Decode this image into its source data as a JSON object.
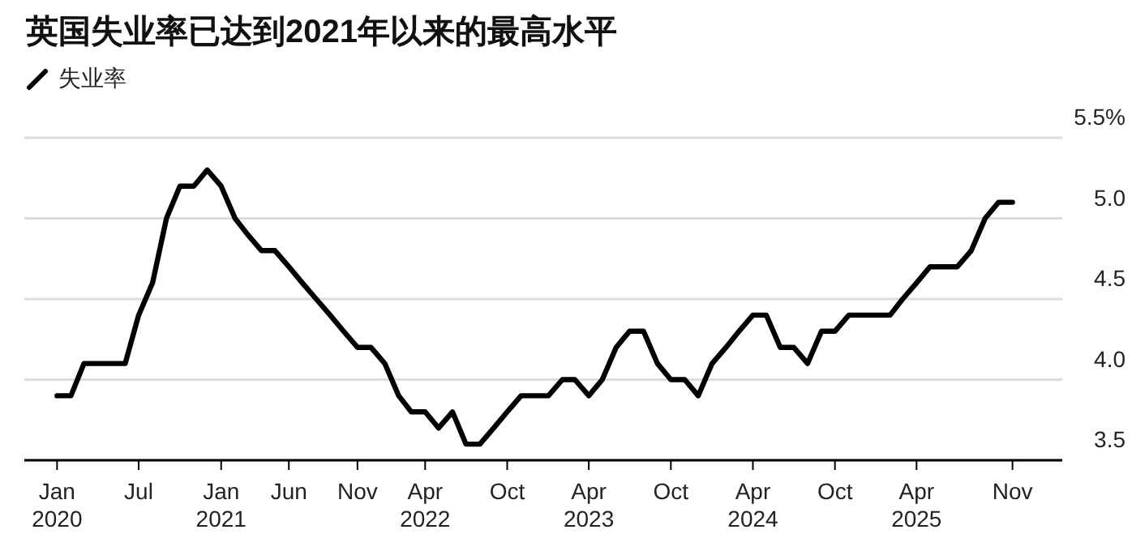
{
  "chart_data": {
    "type": "line",
    "title": "英国失业率已达到2021年以来的最高水平",
    "x": [
      "2020-01",
      "2020-02",
      "2020-03",
      "2020-04",
      "2020-05",
      "2020-06",
      "2020-07",
      "2020-08",
      "2020-09",
      "2020-10",
      "2020-11",
      "2020-12",
      "2021-01",
      "2021-02",
      "2021-03",
      "2021-04",
      "2021-05",
      "2021-06",
      "2021-07",
      "2021-08",
      "2021-09",
      "2021-10",
      "2021-11",
      "2021-12",
      "2022-01",
      "2022-02",
      "2022-03",
      "2022-04",
      "2022-05",
      "2022-06",
      "2022-07",
      "2022-08",
      "2022-09",
      "2022-10",
      "2022-11",
      "2022-12",
      "2023-01",
      "2023-02",
      "2023-03",
      "2023-04",
      "2023-05",
      "2023-06",
      "2023-07",
      "2023-08",
      "2023-09",
      "2023-10",
      "2023-11",
      "2023-12",
      "2024-01",
      "2024-02",
      "2024-03",
      "2024-04",
      "2024-05",
      "2024-06",
      "2024-07",
      "2024-08",
      "2024-09",
      "2024-10",
      "2024-11",
      "2024-12",
      "2025-01",
      "2025-02",
      "2025-03",
      "2025-04",
      "2025-05",
      "2025-06",
      "2025-07",
      "2025-08",
      "2025-09",
      "2025-10",
      "2025-11"
    ],
    "series": [
      {
        "name": "失业率",
        "color": "#000000",
        "values": [
          3.9,
          3.9,
          4.1,
          4.1,
          4.1,
          4.1,
          4.4,
          4.6,
          5.0,
          5.2,
          5.2,
          5.3,
          5.2,
          5.0,
          4.9,
          4.8,
          4.8,
          4.7,
          4.6,
          4.5,
          4.4,
          4.3,
          4.2,
          4.2,
          4.1,
          3.9,
          3.8,
          3.8,
          3.7,
          3.8,
          3.6,
          3.6,
          3.7,
          3.8,
          3.9,
          3.9,
          3.9,
          4.0,
          4.0,
          3.9,
          4.0,
          4.2,
          4.3,
          4.3,
          4.1,
          4.0,
          4.0,
          3.9,
          4.1,
          4.2,
          4.3,
          4.4,
          4.4,
          4.2,
          4.2,
          4.1,
          4.3,
          4.3,
          4.4,
          4.4,
          4.4,
          4.4,
          4.5,
          4.6,
          4.7,
          4.7,
          4.7,
          4.8,
          5.0,
          5.1,
          5.1
        ]
      }
    ],
    "xlim": [
      "2019-10-20",
      "2026-02-20"
    ],
    "xticks": [
      {
        "value": "2020-01",
        "label": "Jan\n2020"
      },
      {
        "value": "2020-07",
        "label": "Jul"
      },
      {
        "value": "2021-01",
        "label": "Jan\n2021"
      },
      {
        "value": "2021-06",
        "label": "Jun"
      },
      {
        "value": "2021-11",
        "label": "Nov"
      },
      {
        "value": "2022-04",
        "label": "Apr\n2022"
      },
      {
        "value": "2022-10",
        "label": "Oct"
      },
      {
        "value": "2023-04",
        "label": "Apr\n2023"
      },
      {
        "value": "2023-10",
        "label": "Oct"
      },
      {
        "value": "2024-04",
        "label": "Apr\n2024"
      },
      {
        "value": "2024-10",
        "label": "Oct"
      },
      {
        "value": "2025-04",
        "label": "Apr\n2025"
      },
      {
        "value": "2025-11",
        "label": "Nov"
      }
    ],
    "ylim": [
      3.5,
      5.5
    ],
    "yticks": [
      {
        "value": 3.5,
        "label": "3.5"
      },
      {
        "value": 4.0,
        "label": "4.0"
      },
      {
        "value": 4.5,
        "label": "4.5"
      },
      {
        "value": 5.0,
        "label": "5.0"
      },
      {
        "value": 5.5,
        "label": "5.5%"
      }
    ],
    "grid": "y",
    "legend": "top left",
    "marker": "none",
    "line_style": "solid"
  }
}
